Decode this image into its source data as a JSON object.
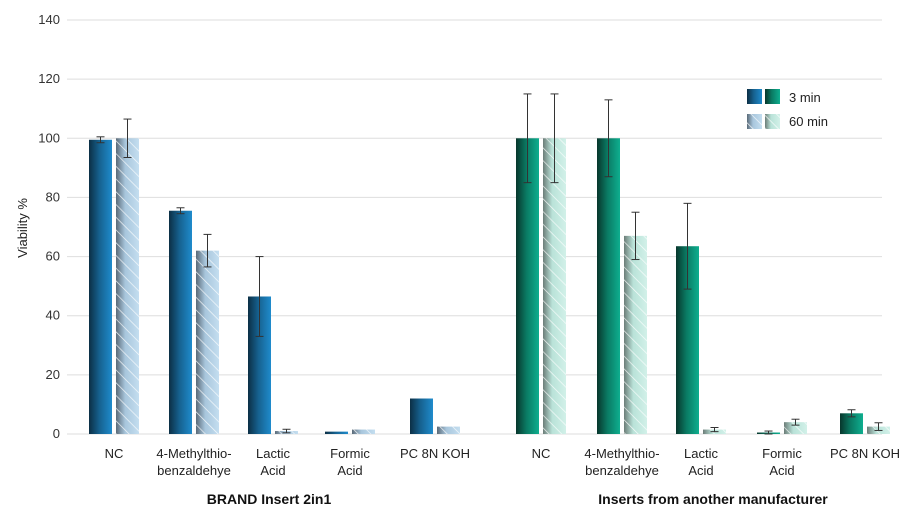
{
  "chart_data": {
    "type": "bar",
    "ylabel": "Viability %",
    "ylim": [
      0,
      140
    ],
    "yticks": [
      0,
      20,
      40,
      60,
      80,
      100,
      120,
      140
    ],
    "grid": true,
    "legend_position": "top-right",
    "legend": [
      {
        "label": "3 min",
        "pattern": "solid"
      },
      {
        "label": "60 min",
        "pattern": "hatched"
      }
    ],
    "colors": {
      "brand_3min": "#1f86c4",
      "brand_60min": "#b7d6ec",
      "other_3min": "#0aa187",
      "other_60min": "#c6ebe2",
      "grid": "#dedede",
      "error_bar": "#333333"
    },
    "groups": [
      {
        "label": "BRAND Insert 2in1",
        "color_key": "brand",
        "categories": [
          {
            "label": [
              "NC"
            ],
            "values": [
              {
                "value": 99.5,
                "error": 1
              },
              {
                "value": 100,
                "error": 6.5
              }
            ]
          },
          {
            "label": [
              "4-Methylthio-",
              "benzaldehye"
            ],
            "values": [
              {
                "value": 75.5,
                "error": 1
              },
              {
                "value": 62,
                "error": 5.5
              }
            ]
          },
          {
            "label": [
              "Lactic",
              "Acid"
            ],
            "values": [
              {
                "value": 46.5,
                "error": 13.5
              },
              {
                "value": 1,
                "error": 0.6
              }
            ]
          },
          {
            "label": [
              "Formic",
              "Acid"
            ],
            "values": [
              {
                "value": 0.8,
                "error": null
              },
              {
                "value": 1.5,
                "error": null
              }
            ]
          },
          {
            "label": [
              "PC 8N KOH"
            ],
            "values": [
              {
                "value": 12,
                "error": null
              },
              {
                "value": 2.5,
                "error": null
              }
            ]
          }
        ]
      },
      {
        "label": "Inserts from another manufacturer",
        "color_key": "other",
        "categories": [
          {
            "label": [
              "NC"
            ],
            "values": [
              {
                "value": 100,
                "error": 15
              },
              {
                "value": 100,
                "error": 15
              }
            ]
          },
          {
            "label": [
              "4-Methylthio-",
              "benzaldehye"
            ],
            "values": [
              {
                "value": 100,
                "error": 13
              },
              {
                "value": 67,
                "error": 8
              }
            ]
          },
          {
            "label": [
              "Lactic",
              "Acid"
            ],
            "values": [
              {
                "value": 63.5,
                "error": 14.5
              },
              {
                "value": 1.5,
                "error": 0.7
              }
            ]
          },
          {
            "label": [
              "Formic",
              "Acid"
            ],
            "values": [
              {
                "value": 0.5,
                "error": 0.5
              },
              {
                "value": 4,
                "error": 1
              }
            ]
          },
          {
            "label": [
              "PC 8N KOH"
            ],
            "values": [
              {
                "value": 7,
                "error": 1.2
              },
              {
                "value": 2.5,
                "error": 1.3
              }
            ]
          }
        ]
      }
    ]
  }
}
